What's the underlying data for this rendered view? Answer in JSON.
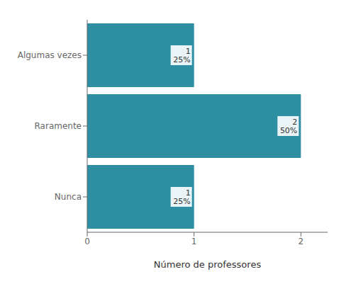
{
  "chart_data": {
    "type": "bar",
    "orientation": "horizontal",
    "categories": [
      "Algumas vezes",
      "Raramente",
      "Nunca"
    ],
    "values": [
      1,
      2,
      1
    ],
    "value_labels": [
      "1\n25%",
      "2\n50%",
      "1\n25%"
    ],
    "data_labels": true,
    "color": "#2e8fa3",
    "xlabel": "Número de professores",
    "xlim": [
      0,
      2.25
    ],
    "xticks": [
      0,
      1,
      2
    ],
    "grid": false
  }
}
